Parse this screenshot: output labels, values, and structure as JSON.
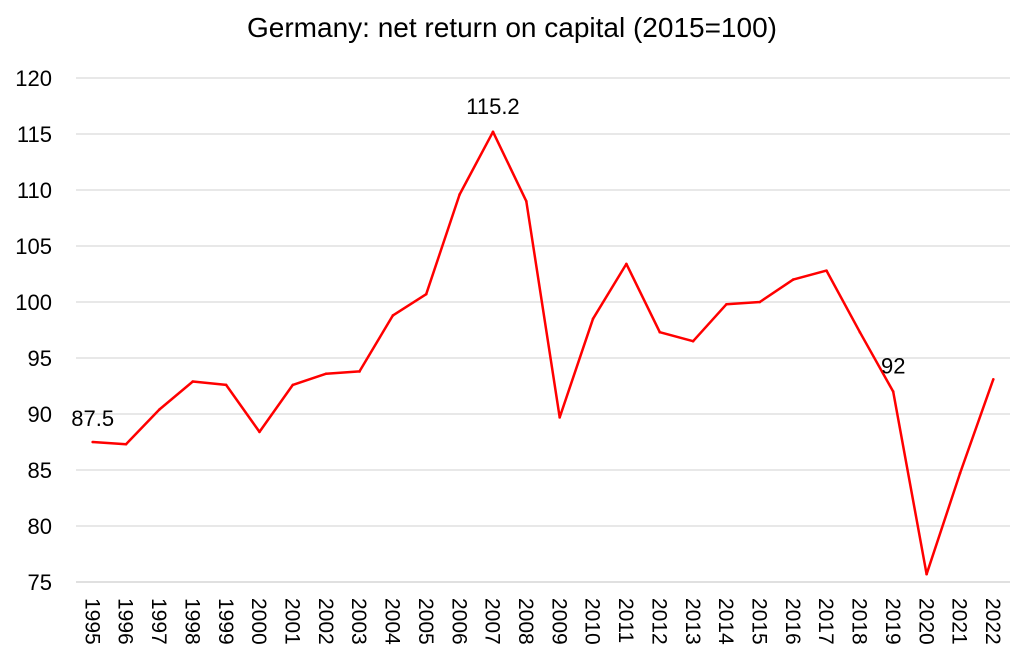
{
  "chart_data": {
    "type": "line",
    "title": "Germany: net return on capital (2015=100)",
    "xlabel": "",
    "ylabel": "",
    "ylim": [
      75,
      120
    ],
    "yticks": [
      75,
      80,
      85,
      90,
      95,
      100,
      105,
      110,
      115,
      120
    ],
    "grid": true,
    "legend": "none",
    "series_color": "#ff0000",
    "grid_color": "#d9d9d9",
    "categories": [
      "1995",
      "1996",
      "1997",
      "1998",
      "1999",
      "2000",
      "2001",
      "2002",
      "2003",
      "2004",
      "2005",
      "2006",
      "2007",
      "2008",
      "2009",
      "2010",
      "2011",
      "2012",
      "2013",
      "2014",
      "2015",
      "2016",
      "2017",
      "2018",
      "2019",
      "2020",
      "2021",
      "2022"
    ],
    "series": [
      {
        "values": [
          87.5,
          87.3,
          90.4,
          92.9,
          92.6,
          88.4,
          92.6,
          93.6,
          93.8,
          98.8,
          100.7,
          109.6,
          115.2,
          109.0,
          89.7,
          98.5,
          103.4,
          97.3,
          96.5,
          99.8,
          100.0,
          102.0,
          102.8,
          97.3,
          92.0,
          75.7,
          84.7,
          93.1
        ]
      }
    ],
    "annotations": [
      {
        "x": "1995",
        "text": "87.5"
      },
      {
        "x": "2007",
        "text": "115.2"
      },
      {
        "x": "2019",
        "text": "92"
      }
    ]
  }
}
